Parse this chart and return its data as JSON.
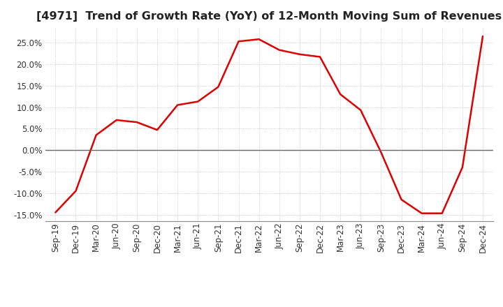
{
  "title": "[4971]  Trend of Growth Rate (YoY) of 12-Month Moving Sum of Revenues",
  "x_labels": [
    "Sep-19",
    "Dec-19",
    "Mar-20",
    "Jun-20",
    "Sep-20",
    "Dec-20",
    "Mar-21",
    "Jun-21",
    "Sep-21",
    "Dec-21",
    "Mar-22",
    "Jun-22",
    "Sep-22",
    "Dec-22",
    "Mar-23",
    "Jun-23",
    "Sep-23",
    "Dec-23",
    "Mar-24",
    "Jun-24",
    "Sep-24",
    "Dec-24"
  ],
  "y_values": [
    -14.5,
    -9.5,
    3.5,
    7.0,
    6.5,
    4.7,
    10.5,
    11.3,
    14.7,
    25.3,
    25.8,
    23.3,
    22.3,
    21.7,
    13.0,
    9.3,
    -0.5,
    -11.5,
    -14.7,
    -14.7,
    -4.0,
    26.5
  ],
  "line_color": "#dd0000",
  "line_width": 1.8,
  "ylim": [
    -16.5,
    28.5
  ],
  "yticks": [
    -15.0,
    -10.0,
    -5.0,
    0.0,
    5.0,
    10.0,
    15.0,
    20.0,
    25.0
  ],
  "background_color": "#ffffff",
  "plot_bg_color": "#ffffff",
  "grid_color": "#bbbbbb",
  "title_fontsize": 11.5,
  "tick_fontsize": 8.5,
  "title_color": "#222222"
}
